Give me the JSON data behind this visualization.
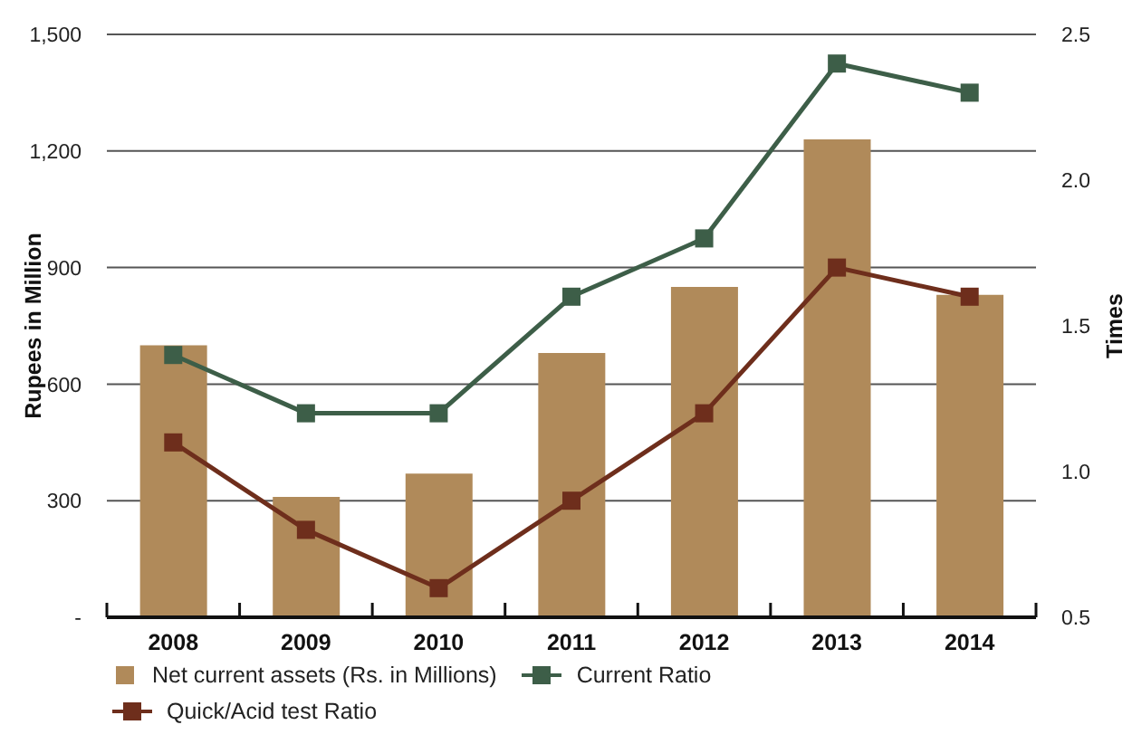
{
  "chart_data": {
    "type": "bar",
    "categories": [
      "2008",
      "2009",
      "2010",
      "2011",
      "2012",
      "2013",
      "2014"
    ],
    "ylabel": "Rupees in Million",
    "y2label": "Times",
    "ylim": [
      0,
      1500
    ],
    "yticks": [
      {
        "value": 0,
        "label": "-"
      },
      300,
      600,
      900,
      {
        "value": 1200,
        "label": "1,200"
      },
      {
        "value": 1500,
        "label": "1,500"
      }
    ],
    "y2lim": [
      0.5,
      2.5
    ],
    "y2ticks": [
      0.5,
      {
        "value": 1,
        "label": "1.0"
      },
      1.5,
      {
        "value": 2,
        "label": "2.0"
      },
      2.5
    ],
    "series": [
      {
        "name": "Net current assets (Rs. in Millions)",
        "color": "#b08a5a",
        "values": [
          700,
          310,
          370,
          680,
          850,
          1230,
          830
        ]
      },
      {
        "name": "Current Ratio",
        "type": "line",
        "axis": "y2",
        "color": "#3d5e48",
        "values": [
          1.4,
          1.2,
          1.2,
          1.6,
          1.8,
          2.4,
          2.3
        ]
      },
      {
        "name": "Quick/Acid test Ratio",
        "type": "line",
        "axis": "y2",
        "color": "#6e2e1c",
        "values": [
          1.1,
          0.8,
          0.6,
          0.9,
          1.2,
          1.7,
          1.6
        ]
      }
    ],
    "grid": "y",
    "legend": "bottom",
    "marker": "square",
    "line_style": "solid"
  }
}
